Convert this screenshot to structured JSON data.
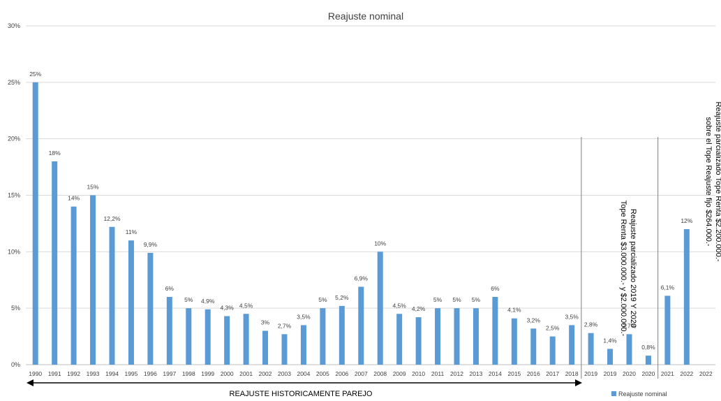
{
  "chart_data": {
    "type": "bar",
    "title": "Reajuste nominal",
    "xlabel": "",
    "ylabel": "",
    "ylim": [
      0,
      30
    ],
    "y_ticks": [
      "0%",
      "5%",
      "10%",
      "15%",
      "20%",
      "25%",
      "30%"
    ],
    "grid": "horizontal",
    "legend_position": "bottom-right",
    "colors": {
      "bar": "#5b9bd5",
      "grid": "#d9d9d9",
      "axis": "#bfbfbf",
      "text": "#404040",
      "separator": "#7f7f7f"
    },
    "categories": [
      "1990",
      "1991",
      "1992",
      "1993",
      "1994",
      "1995",
      "1996",
      "1997",
      "1998",
      "1999",
      "2000",
      "2001",
      "2002",
      "2003",
      "2004",
      "2005",
      "2006",
      "2007",
      "2008",
      "2009",
      "2010",
      "2011",
      "2012",
      "2013",
      "2014",
      "2015",
      "2016",
      "2017",
      "2018",
      "2019",
      "2019",
      "2020",
      "2020",
      "2021",
      "2022",
      "2022"
    ],
    "series": [
      {
        "name": "Reajuste nominal",
        "values": [
          25,
          18,
          14,
          15,
          12.2,
          11,
          9.9,
          6,
          5,
          4.9,
          4.3,
          4.5,
          3,
          2.7,
          3.5,
          5,
          5.2,
          6.9,
          10,
          4.5,
          4.2,
          5,
          5,
          5,
          6,
          4.1,
          3.2,
          2.5,
          3.5,
          2.8,
          1.4,
          2.7,
          0.8,
          6.1,
          12,
          null
        ],
        "data_labels": [
          "25%",
          "18%",
          "14%",
          "15%",
          "12,2%",
          "11%",
          "9,9%",
          "6%",
          "5%",
          "4,9%",
          "4,3%",
          "4,5%",
          "3%",
          "2,7%",
          "3,5%",
          "5%",
          "5,2%",
          "6,9%",
          "10%",
          "4,5%",
          "4,2%",
          "5%",
          "5%",
          "5%",
          "6%",
          "4,1%",
          "3,2%",
          "2,5%",
          "3,5%",
          "2,8%",
          "1,4%",
          "2,7%",
          "0,8%",
          "6,1%",
          "12%",
          ""
        ]
      }
    ],
    "annotations": {
      "historical_label": "REAJUSTE HISTORICAMENTE PAREJO",
      "note_2019_2020": [
        "Reajuste parcializado 2019 Y 2020",
        "Tope Renta $3.000.000.- y $2.000.000.-"
      ],
      "note_2022": [
        "Reajuste parcializado Tope Renta $2.200.000.-",
        "sobre el Tope Reajuste fijo $264.000.-"
      ]
    }
  }
}
